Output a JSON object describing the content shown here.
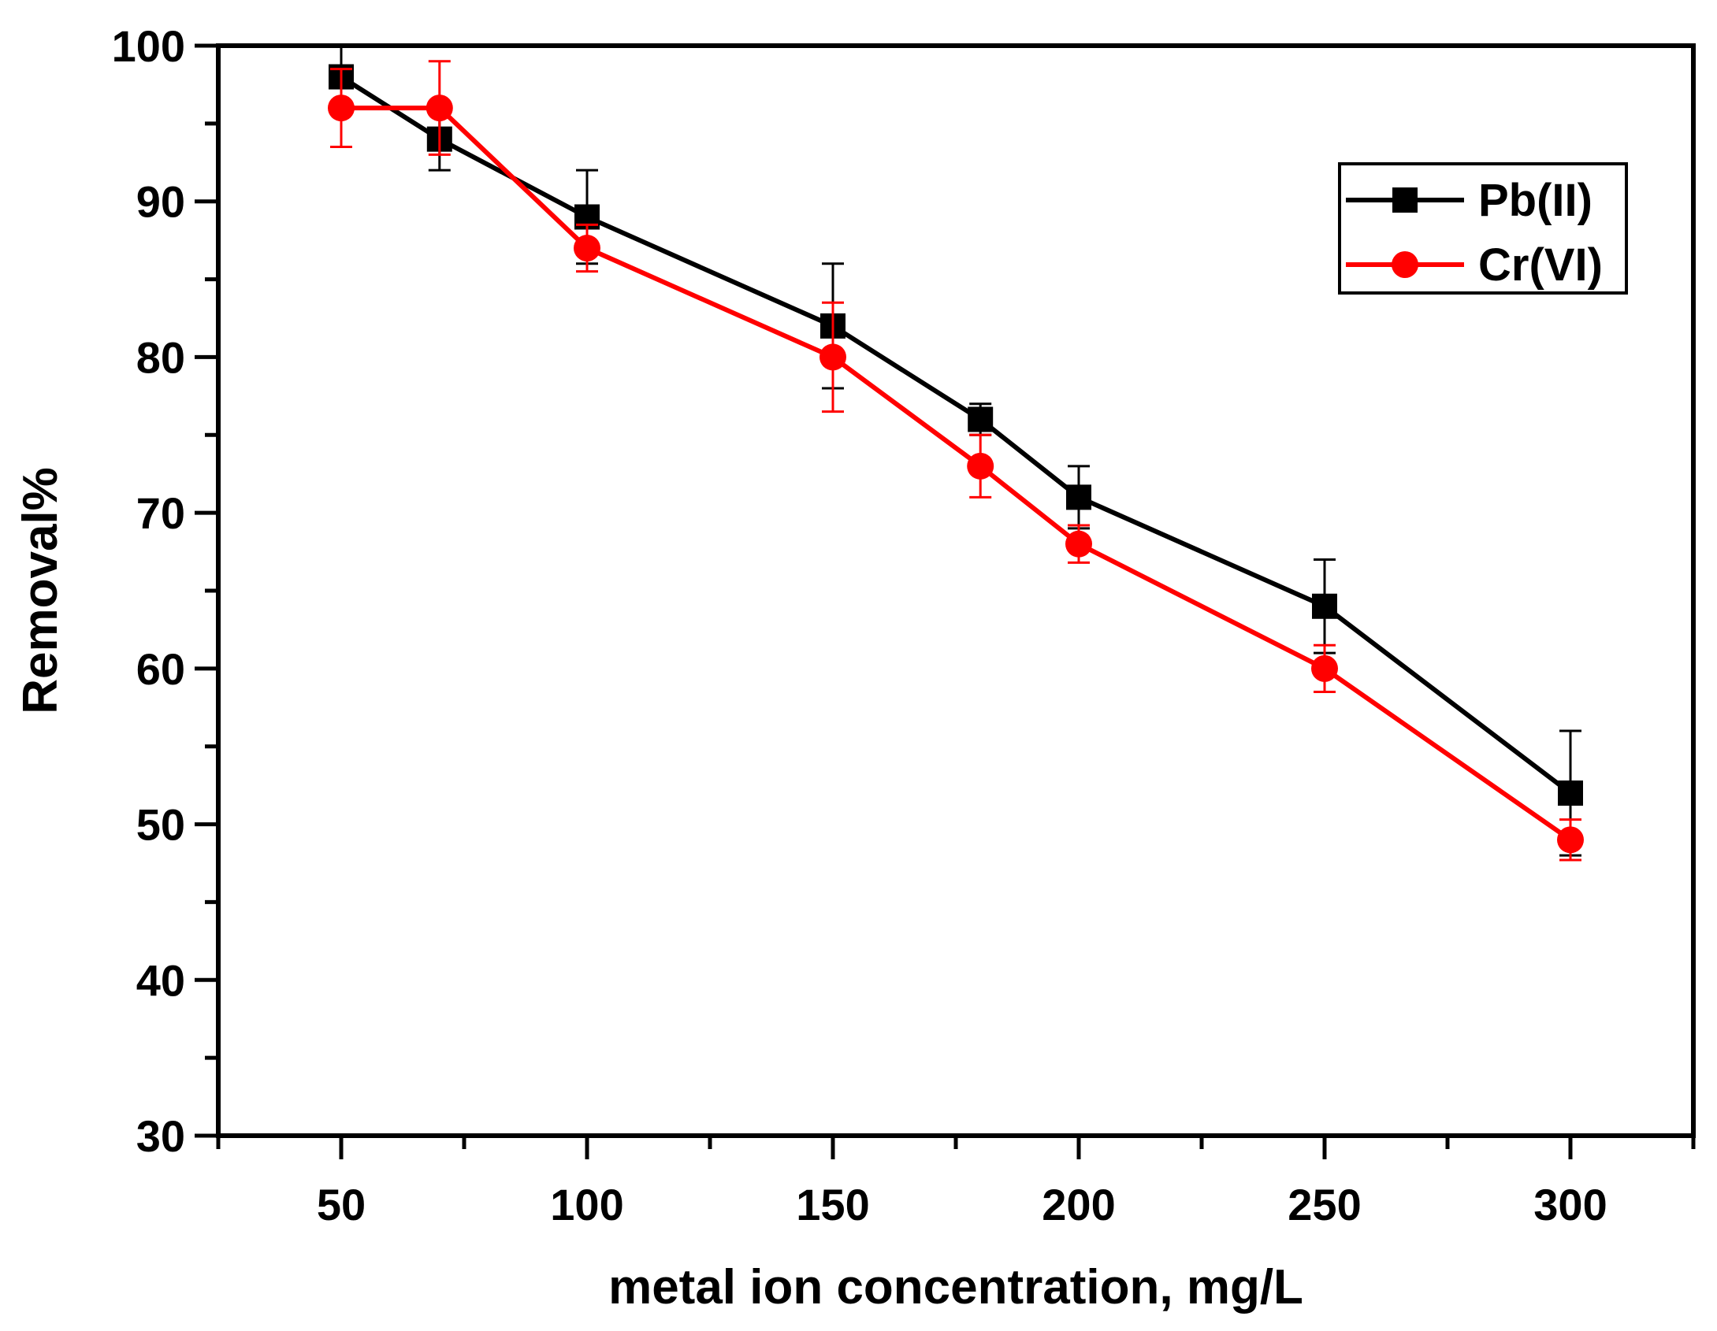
{
  "chart_data": {
    "type": "line",
    "title": "",
    "xlabel": "metal ion concentration, mg/L",
    "ylabel": "Removal%",
    "xlim": [
      25,
      325
    ],
    "ylim": [
      30,
      100
    ],
    "xticks": [
      50,
      100,
      150,
      200,
      250,
      300
    ],
    "yticks": [
      30,
      40,
      50,
      60,
      70,
      80,
      90,
      100
    ],
    "x_minor_ticks": [
      25,
      75,
      125,
      175,
      225,
      275,
      325
    ],
    "y_minor_ticks": [
      35,
      45,
      55,
      65,
      75,
      85,
      95
    ],
    "grid": false,
    "legend_position": "top-right",
    "x": [
      50,
      70,
      100,
      150,
      180,
      200,
      250,
      300
    ],
    "series": [
      {
        "name": "Pb(II)",
        "color": "#000000",
        "marker": "square",
        "values": [
          98,
          94,
          89,
          82,
          76,
          71,
          64,
          52
        ],
        "errors": [
          2,
          2,
          3,
          4,
          1,
          2,
          3,
          4
        ]
      },
      {
        "name": "Cr(VI)",
        "color": "#ff0000",
        "marker": "circle",
        "values": [
          96,
          96,
          87,
          80,
          73,
          68,
          60,
          49
        ],
        "errors": [
          2.5,
          3,
          1.5,
          3.5,
          2,
          1.2,
          1.5,
          1.3
        ]
      }
    ]
  }
}
